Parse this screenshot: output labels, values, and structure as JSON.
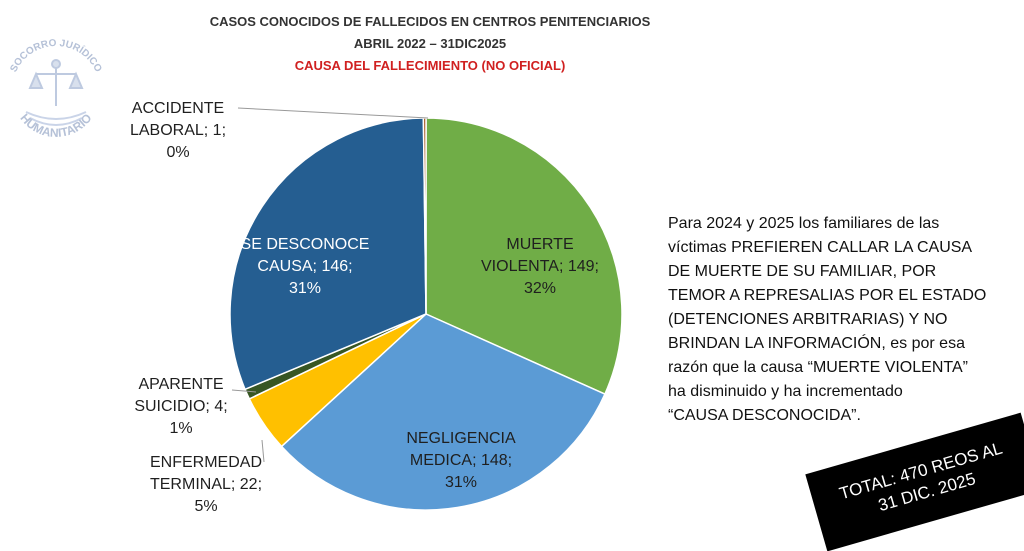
{
  "header": {
    "title_line1": "CASOS CONOCIDOS DE FALLECIDOS EN CENTROS PENITENCIARIOS",
    "title_line2": "ABRIL 2022 – 31DIC2025",
    "title_line3": "CAUSA DEL FALLECIMIENTO (NO OFICIAL)"
  },
  "logo": {
    "text_top": "SOCORRO JURÍDICO",
    "text_bottom": "HUMANITARIO",
    "icon": "scales-of-justice-icon"
  },
  "chart_data": {
    "type": "pie",
    "title": "CAUSA DEL FALLECIMIENTO (NO OFICIAL)",
    "slices": [
      {
        "name": "MUERTE VIOLENTA",
        "value": 149,
        "percent": "32%",
        "color": "#70ad47"
      },
      {
        "name": "NEGLIGENCIA MEDICA",
        "value": 148,
        "percent": "31%",
        "color": "#5b9bd5"
      },
      {
        "name": "ENFERMEDAD TERMINAL",
        "value": 22,
        "percent": "5%",
        "color": "#ffc000"
      },
      {
        "name": "APARENTE SUICIDIO",
        "value": 4,
        "percent": "1%",
        "color": "#375623"
      },
      {
        "name": "SE DESCONOCE CAUSA",
        "value": 146,
        "percent": "31%",
        "color": "#255e91"
      },
      {
        "name": "ACCIDENTE LABORAL",
        "value": 1,
        "percent": "0%",
        "color": "#9e480e"
      }
    ],
    "labels": {
      "accidente": [
        "ACCIDENTE",
        "LABORAL; 1;",
        "0%"
      ],
      "desconoce": [
        "SE DESCONOCE",
        "CAUSA; 146;",
        "31%"
      ],
      "violenta": [
        "MUERTE",
        "VIOLENTA; 149;",
        "32%"
      ],
      "suicidio": [
        "APARENTE",
        "SUICIDIO; 4;",
        "1%"
      ],
      "enfermedad": [
        "ENFERMEDAD",
        "TERMINAL; 22;",
        "5%"
      ],
      "negligencia": [
        "NEGLIGENCIA",
        "MEDICA; 148;",
        "31%"
      ]
    }
  },
  "note": {
    "lines": [
      "Para 2024 y 2025 los familiares de las",
      "víctimas PREFIEREN CALLAR LA CAUSA",
      "DE MUERTE DE SU FAMILIAR, POR",
      "TEMOR A REPRESALIAS POR EL ESTADO",
      "(DETENCIONES ARBITRARIAS) Y NO",
      "BRINDAN LA INFORMACIÓN, es por esa",
      "razón que la causa “MUERTE VIOLENTA”",
      "ha disminuido y ha incrementado",
      "“CAUSA DESCONOCIDA”."
    ]
  },
  "total": {
    "line1": "TOTAL: 470 REOS AL",
    "line2": "31 DIC. 2025"
  }
}
